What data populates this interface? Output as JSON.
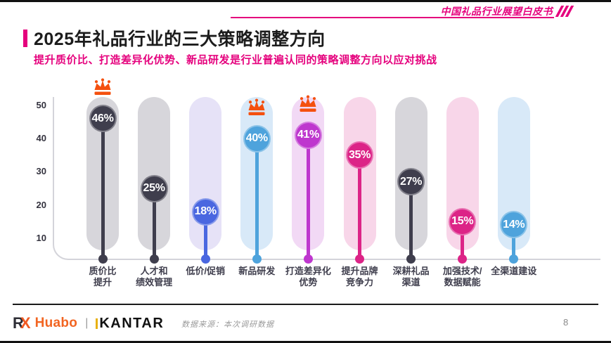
{
  "page": {
    "brand": "中国礼品行业展望白皮书",
    "title": "2025年礼品行业的三大策略调整方向",
    "subtitle": "提升质价比、打造差异化优势、新品研发是行业普遍认同的策略调整方向以应对挑战",
    "page_number": "8",
    "accent_color": "#E5017D"
  },
  "footer": {
    "logo_rx_r": "R",
    "logo_rx_x": "X",
    "logo_huabo": "Huabo",
    "logo_separator": "|",
    "logo_kantar": "KANTAR",
    "source_note": "数据来源：本次调研数据"
  },
  "chart_data": {
    "type": "bar",
    "subtype": "lollipop",
    "title": "2025年礼品行业的三大策略调整方向",
    "unit": "%",
    "yticks": [
      10,
      20,
      30,
      40,
      50
    ],
    "ylim": [
      0,
      52
    ],
    "grid": false,
    "legend_position": "none",
    "categories": [
      "质价比提升",
      "人才和绩效管理",
      "低价/促销",
      "新品研发",
      "打造差异化优势",
      "提升品牌竞争力",
      "深耕礼品渠道",
      "加强技术/数据赋能",
      "全渠道建设"
    ],
    "values": [
      46,
      25,
      18,
      40,
      41,
      35,
      27,
      15,
      14
    ],
    "series": [
      {
        "category_lines": [
          "质价比",
          "提升"
        ],
        "value": 46,
        "label": "46%",
        "crowned": true,
        "color": "#3F3E4D",
        "track_color": "#D7D6DB"
      },
      {
        "category_lines": [
          "人才和",
          "绩效管理"
        ],
        "value": 25,
        "label": "25%",
        "crowned": false,
        "color": "#3F3E4D",
        "track_color": "#D7D6DB"
      },
      {
        "category_lines": [
          "低价/促销"
        ],
        "value": 18,
        "label": "18%",
        "crowned": false,
        "color": "#4A67E0",
        "track_color": "#E6E2F7"
      },
      {
        "category_lines": [
          "新品研发"
        ],
        "value": 40,
        "label": "40%",
        "crowned": true,
        "color": "#4EA3DC",
        "track_color": "#D8E9F8"
      },
      {
        "category_lines": [
          "打造差异化",
          "优势"
        ],
        "value": 41,
        "label": "41%",
        "crowned": true,
        "color": "#BE37CE",
        "track_color": "#F2D9F5"
      },
      {
        "category_lines": [
          "提升品牌",
          "竞争力"
        ],
        "value": 35,
        "label": "35%",
        "crowned": false,
        "color": "#DC2487",
        "track_color": "#F8D6E9"
      },
      {
        "category_lines": [
          "深耕礼品",
          "渠道"
        ],
        "value": 27,
        "label": "27%",
        "crowned": false,
        "color": "#3F3E4D",
        "track_color": "#D7D6DB"
      },
      {
        "category_lines": [
          "加强技术/",
          "数据赋能"
        ],
        "value": 15,
        "label": "15%",
        "crowned": false,
        "color": "#DC2487",
        "track_color": "#F8D6E9"
      },
      {
        "category_lines": [
          "全渠道建设"
        ],
        "value": 14,
        "label": "14%",
        "crowned": false,
        "color": "#4EA3DC",
        "track_color": "#D8E9F8"
      }
    ],
    "crown_color": "#F4500F",
    "axis_color": "#D4D4DA",
    "tick_color": "#33323E"
  }
}
